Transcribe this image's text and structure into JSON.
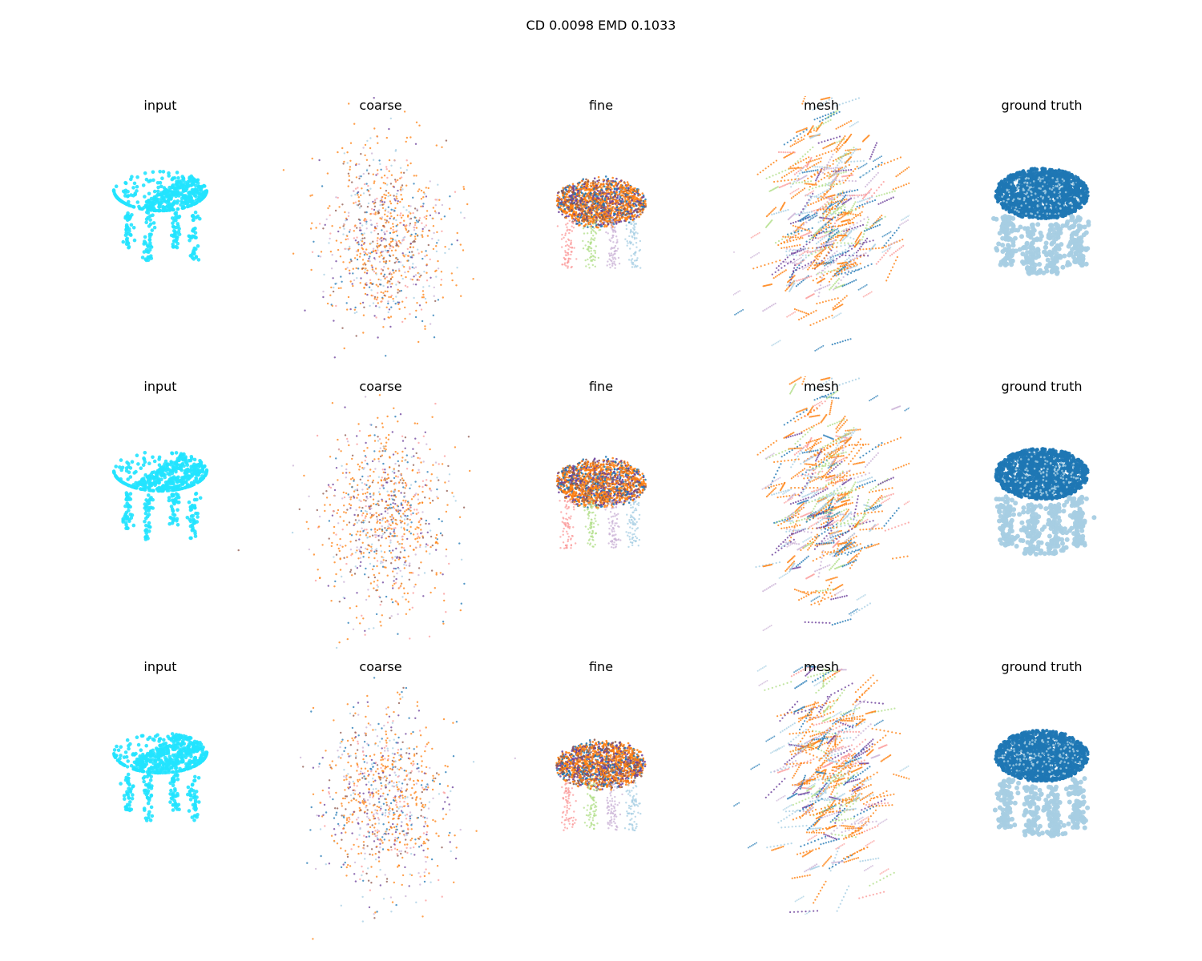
{
  "figure": {
    "title": "CD 0.0098  EMD 0.1033"
  },
  "colors": {
    "input": "#22e3ff",
    "gt_top": "#1f77b4",
    "gt_legs": "#a6cee3",
    "tab_orange": "#ff7f0e",
    "tab_blue": "#1f77b4",
    "tab_purple": "#6a3d9a",
    "light_purple": "#cab2d6",
    "light_blue": "#a6cee3",
    "pink": "#fb9a99",
    "light_green": "#b2df8a",
    "red": "#e31a1c",
    "brown": "#8c564b"
  },
  "chart_data": {
    "type": "scatter",
    "layout": "3 rows x 5 columns of 3D point-cloud panels",
    "axes_visible": false,
    "rows": [
      {
        "panels": [
          {
            "title": "input",
            "kind": "input"
          },
          {
            "title": "coarse",
            "kind": "coarse"
          },
          {
            "title": "fine",
            "kind": "fine"
          },
          {
            "title": "mesh",
            "kind": "mesh"
          },
          {
            "title": "ground truth",
            "kind": "gt"
          }
        ]
      },
      {
        "panels": [
          {
            "title": "input",
            "kind": "input"
          },
          {
            "title": "coarse",
            "kind": "coarse"
          },
          {
            "title": "fine",
            "kind": "fine"
          },
          {
            "title": "mesh",
            "kind": "mesh"
          },
          {
            "title": "ground truth",
            "kind": "gt"
          }
        ]
      },
      {
        "panels": [
          {
            "title": "input",
            "kind": "input"
          },
          {
            "title": "coarse",
            "kind": "coarse"
          },
          {
            "title": "fine",
            "kind": "fine"
          },
          {
            "title": "mesh",
            "kind": "mesh"
          },
          {
            "title": "ground truth",
            "kind": "gt"
          }
        ]
      }
    ]
  }
}
